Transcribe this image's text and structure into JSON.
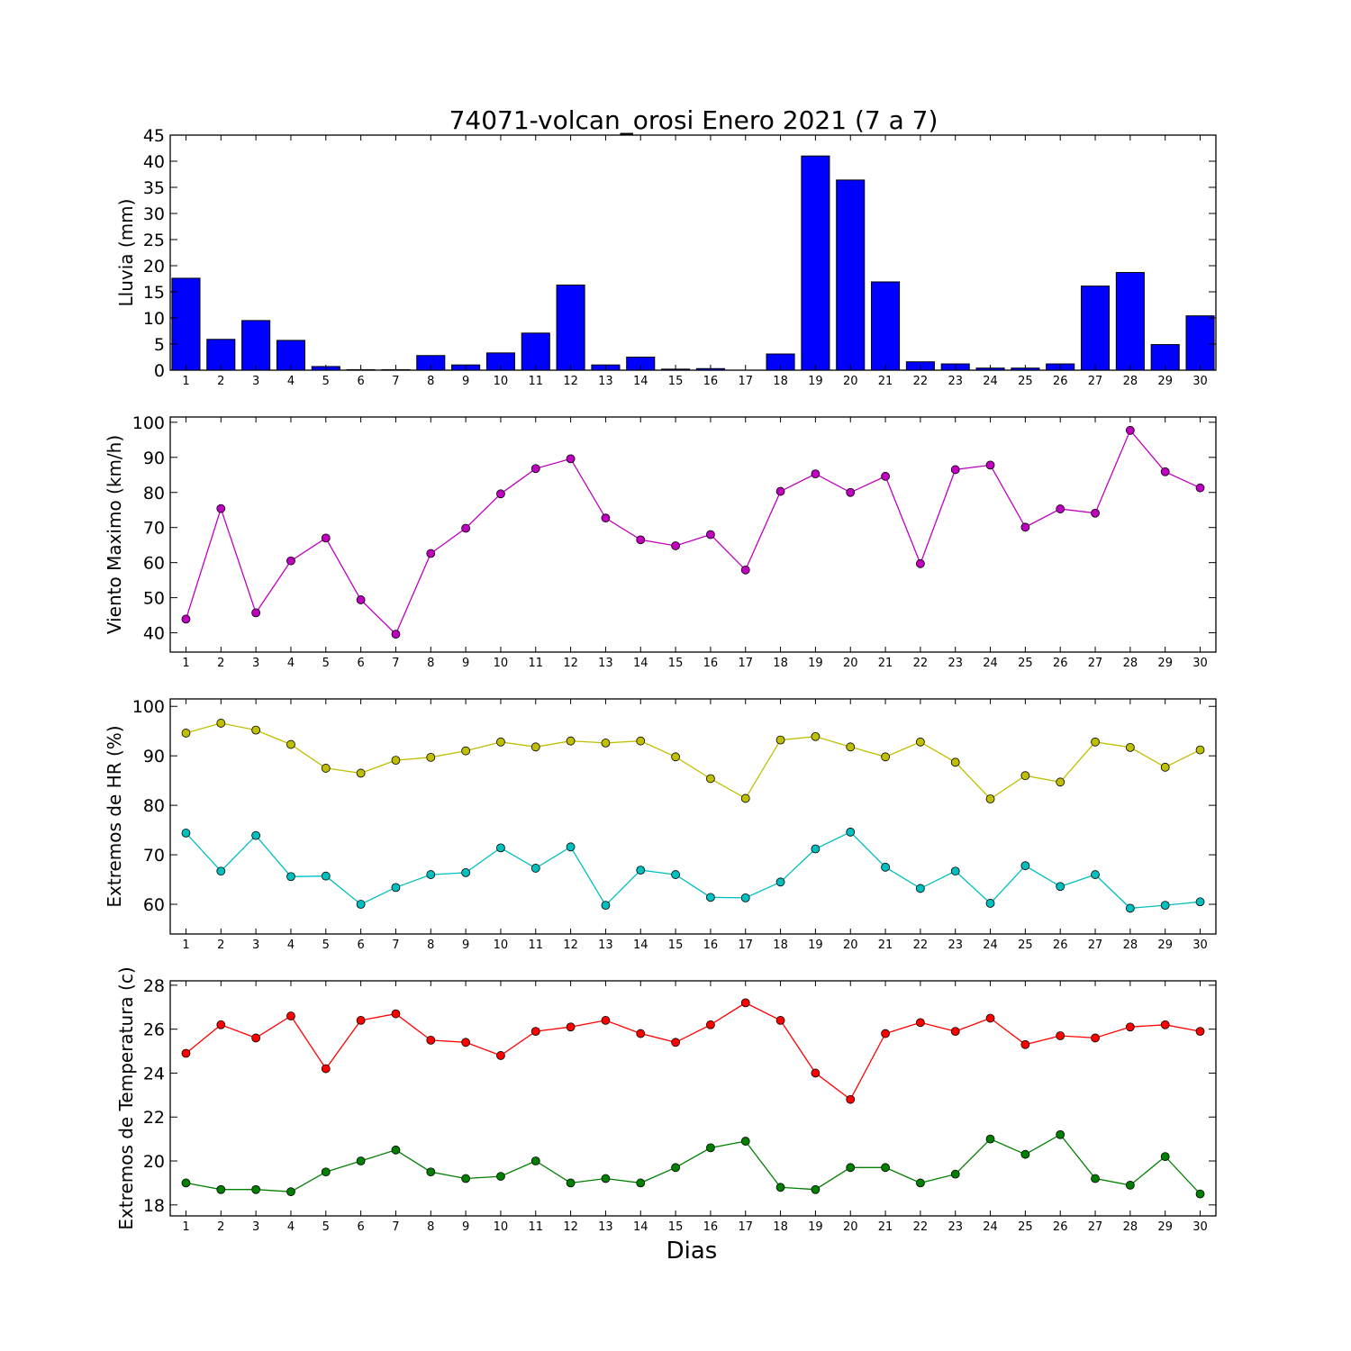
{
  "figure": {
    "title": "74071-volcan_orosi Enero 2021  (7 a 7)",
    "xlabel": "Dias"
  },
  "chart_data": [
    {
      "type": "bar",
      "ylabel": "Lluvia (mm)",
      "ylim": [
        0,
        45
      ],
      "yticks": [
        0,
        5,
        10,
        15,
        20,
        25,
        30,
        35,
        40,
        45
      ],
      "x": [
        1,
        2,
        3,
        4,
        5,
        6,
        7,
        8,
        9,
        10,
        11,
        12,
        13,
        14,
        15,
        16,
        17,
        18,
        19,
        20,
        21,
        22,
        23,
        24,
        25,
        26,
        27,
        28,
        29,
        30
      ],
      "series": [
        {
          "color": "#0000ff",
          "values": [
            17.6,
            5.9,
            9.5,
            5.7,
            0.7,
            0.1,
            0.1,
            2.8,
            1.0,
            3.3,
            7.1,
            16.3,
            1.0,
            2.5,
            0.2,
            0.3,
            0.0,
            3.1,
            41.0,
            36.4,
            16.9,
            1.6,
            1.2,
            0.4,
            0.4,
            1.2,
            16.1,
            18.7,
            4.9,
            10.4
          ]
        }
      ]
    },
    {
      "type": "line",
      "ylabel": "Viento Maximo (km/h)",
      "ylim": [
        34.5,
        101.5
      ],
      "yticks": [
        40,
        50,
        60,
        70,
        80,
        90,
        100
      ],
      "x": [
        1,
        2,
        3,
        4,
        5,
        6,
        7,
        8,
        9,
        10,
        11,
        12,
        13,
        14,
        15,
        16,
        17,
        18,
        19,
        20,
        21,
        22,
        23,
        24,
        25,
        26,
        27,
        28,
        29,
        30
      ],
      "series": [
        {
          "color": "#bf00bf",
          "values": [
            43.9,
            75.4,
            45.7,
            60.5,
            67.0,
            49.4,
            39.6,
            62.6,
            69.8,
            79.6,
            86.8,
            89.6,
            72.7,
            66.5,
            64.8,
            68.0,
            57.9,
            80.3,
            85.3,
            80.0,
            84.6,
            59.7,
            86.5,
            87.8,
            70.1,
            75.3,
            74.1,
            97.7,
            85.9,
            81.3
          ]
        }
      ]
    },
    {
      "type": "line",
      "ylabel": "Extremos de HR (%)",
      "ylim": [
        54,
        101.5
      ],
      "yticks": [
        60,
        70,
        80,
        90,
        100
      ],
      "x": [
        1,
        2,
        3,
        4,
        5,
        6,
        7,
        8,
        9,
        10,
        11,
        12,
        13,
        14,
        15,
        16,
        17,
        18,
        19,
        20,
        21,
        22,
        23,
        24,
        25,
        26,
        27,
        28,
        29,
        30
      ],
      "series": [
        {
          "color": "#bfbf00",
          "values": [
            94.6,
            96.6,
            95.2,
            92.3,
            87.5,
            86.5,
            89.1,
            89.7,
            91.0,
            92.8,
            91.8,
            93.0,
            92.6,
            93.0,
            89.8,
            85.4,
            81.4,
            93.2,
            93.9,
            91.8,
            89.8,
            92.8,
            88.7,
            81.3,
            86.0,
            84.7,
            92.8,
            91.7,
            87.7,
            91.2
          ]
        },
        {
          "color": "#00bfbf",
          "values": [
            74.4,
            66.7,
            73.9,
            65.6,
            65.7,
            60.0,
            63.4,
            66.0,
            66.4,
            71.4,
            67.3,
            71.6,
            59.8,
            66.9,
            66.0,
            61.4,
            61.3,
            64.5,
            71.2,
            74.6,
            67.5,
            63.2,
            66.7,
            60.2,
            67.8,
            63.6,
            66.0,
            59.2,
            59.8,
            60.5
          ]
        }
      ]
    },
    {
      "type": "line",
      "ylabel": "Extremos de Temperatura (c)",
      "ylim": [
        17.5,
        28.2
      ],
      "yticks": [
        18,
        20,
        22,
        24,
        26,
        28
      ],
      "x": [
        1,
        2,
        3,
        4,
        5,
        6,
        7,
        8,
        9,
        10,
        11,
        12,
        13,
        14,
        15,
        16,
        17,
        18,
        19,
        20,
        21,
        22,
        23,
        24,
        25,
        26,
        27,
        28,
        29,
        30
      ],
      "series": [
        {
          "color": "#ff0000",
          "values": [
            24.9,
            26.2,
            25.6,
            26.6,
            24.2,
            26.4,
            26.7,
            25.5,
            25.4,
            24.8,
            25.9,
            26.1,
            26.4,
            25.8,
            25.4,
            26.2,
            27.2,
            26.4,
            24.0,
            22.8,
            25.8,
            26.3,
            25.9,
            26.5,
            25.3,
            25.7,
            25.6,
            26.1,
            26.2,
            25.9
          ]
        },
        {
          "color": "#008000",
          "values": [
            19.0,
            18.7,
            18.7,
            18.6,
            19.5,
            20.0,
            20.5,
            19.5,
            19.2,
            19.3,
            20.0,
            19.0,
            19.2,
            19.0,
            19.7,
            20.6,
            20.9,
            18.8,
            18.7,
            19.7,
            19.7,
            19.0,
            19.4,
            21.0,
            20.3,
            21.2,
            19.2,
            18.9,
            20.2,
            18.5
          ]
        }
      ]
    }
  ]
}
